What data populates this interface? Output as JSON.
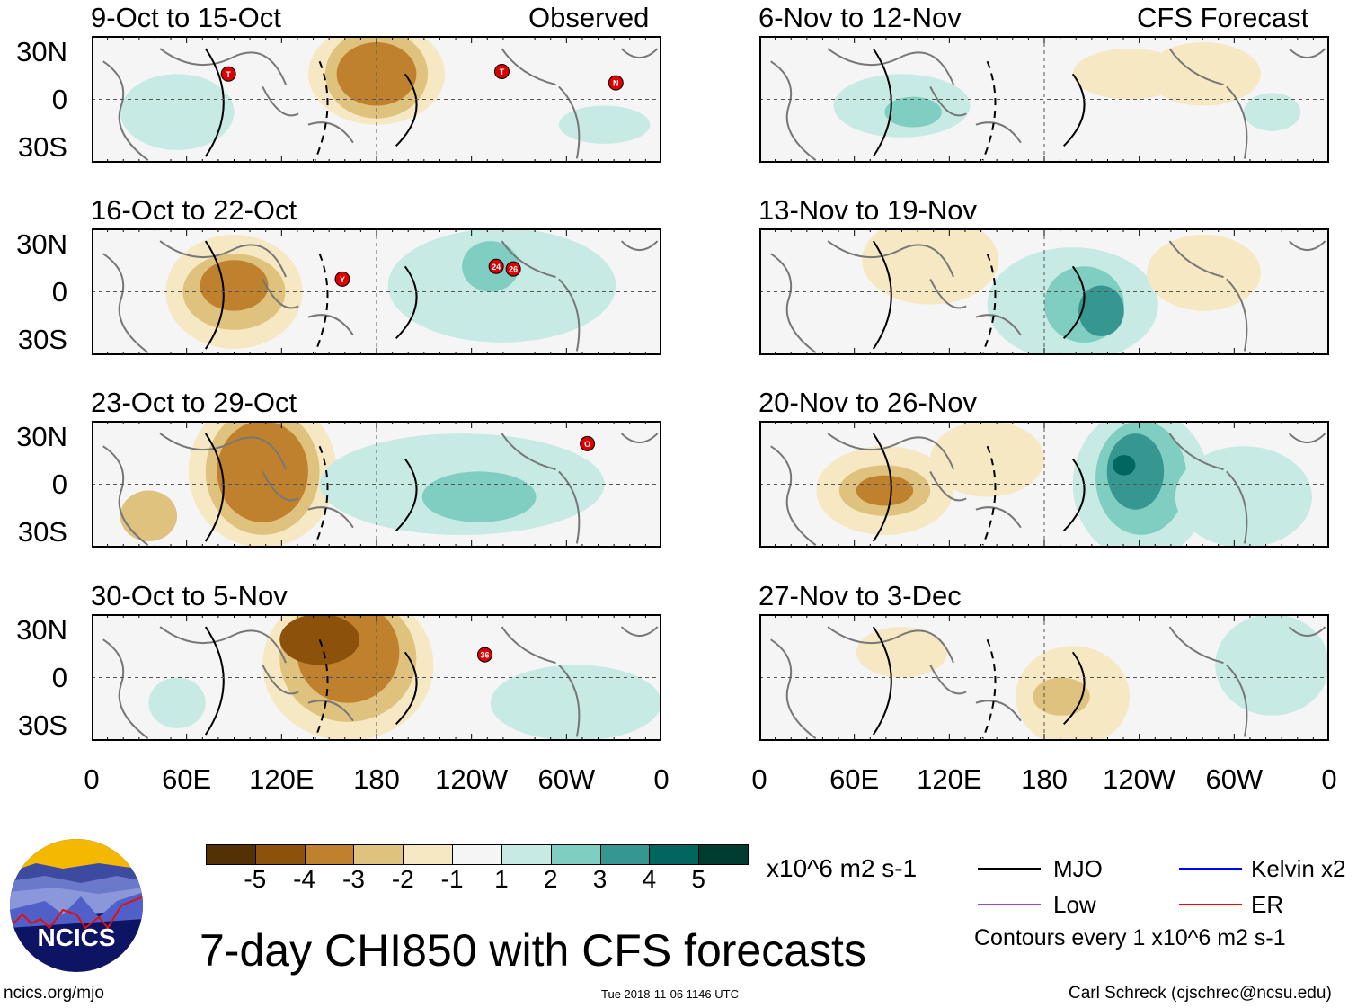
{
  "left_header_label": "Observed",
  "right_header_label": "CFS Forecast",
  "panels_left": [
    {
      "title": "9-Oct to 15-Oct",
      "storms": [
        "T",
        "T",
        "N"
      ]
    },
    {
      "title": "16-Oct to 22-Oct",
      "storms": [
        "Y",
        "24",
        "26"
      ]
    },
    {
      "title": "23-Oct to 29-Oct",
      "storms": [
        "O"
      ]
    },
    {
      "title": "30-Oct to 5-Nov",
      "storms": [
        "36"
      ]
    }
  ],
  "panels_right": [
    {
      "title": "6-Nov to 12-Nov"
    },
    {
      "title": "13-Nov to 19-Nov"
    },
    {
      "title": "20-Nov to 26-Nov"
    },
    {
      "title": "27-Nov to 3-Dec"
    }
  ],
  "lat_labels": [
    "30N",
    "0",
    "30S"
  ],
  "lon_labels": [
    "0",
    "60E",
    "120E",
    "180",
    "120W",
    "60W",
    "0"
  ],
  "colorbar": {
    "colors": [
      "#543005",
      "#8c510a",
      "#bf812d",
      "#dfc27d",
      "#f6e8c3",
      "#f5f5f5",
      "#c7eae5",
      "#80cdc1",
      "#35978f",
      "#01665e",
      "#003c30"
    ],
    "labels": [
      "-5",
      "-4",
      "-3",
      "-2",
      "-1",
      "1",
      "2",
      "3",
      "4",
      "5"
    ],
    "units": "x10^6 m2 s-1"
  },
  "legend": {
    "items": [
      {
        "label": "MJO",
        "color": "#000000"
      },
      {
        "label": "Kelvin x2",
        "color": "#0000ff"
      },
      {
        "label": "Low",
        "color": "#a040e0"
      },
      {
        "label": "ER",
        "color": "#ff0000"
      }
    ],
    "contours_note": "Contours every 1 x10^6 m2 s-1"
  },
  "main_title": "7-day CHI850 with CFS forecasts",
  "logo_text": "NCICS",
  "site_url": "ncics.org/mjo",
  "timestamp": "Tue 2018-11-06 1146 UTC",
  "credit": "Carl Schreck (cjschrec@ncsu.edu)"
}
